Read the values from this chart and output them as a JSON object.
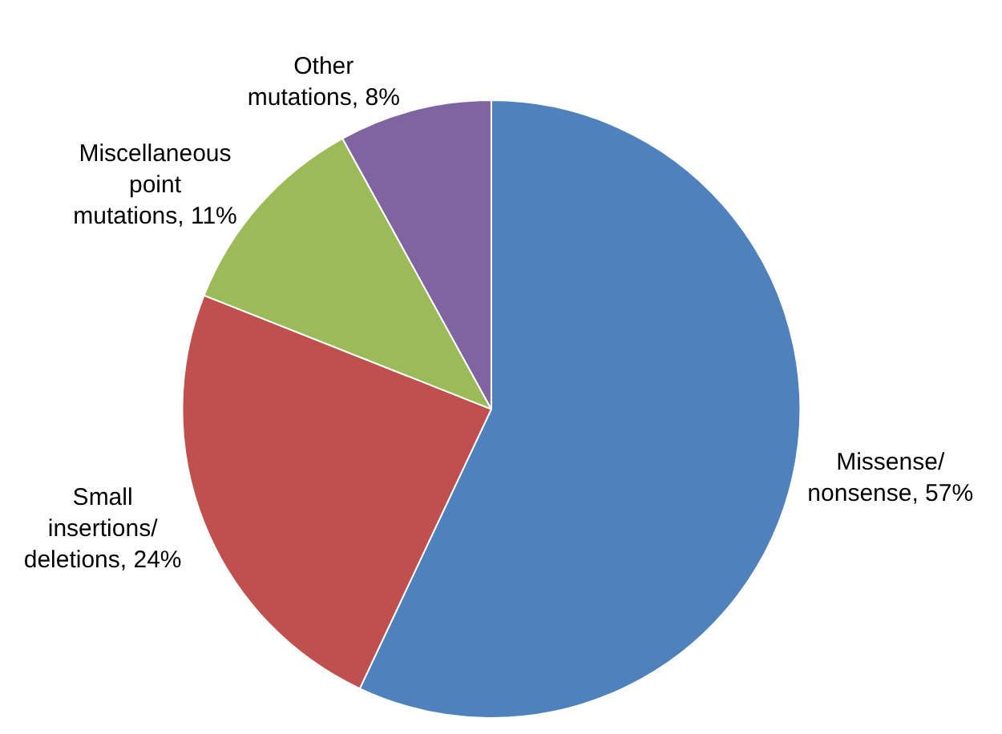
{
  "chart_data": {
    "type": "pie",
    "categories": [
      "Missense/nonsense",
      "Small insertions/deletions",
      "Miscellaneous point mutations",
      "Other mutations"
    ],
    "values": [
      57,
      24,
      11,
      8
    ],
    "value_labels": [
      "57%",
      "24%",
      "11%",
      "8%"
    ],
    "colors": [
      "#4f81bd",
      "#c0504d",
      "#9bbb59",
      "#8064a2"
    ],
    "legend": false
  }
}
